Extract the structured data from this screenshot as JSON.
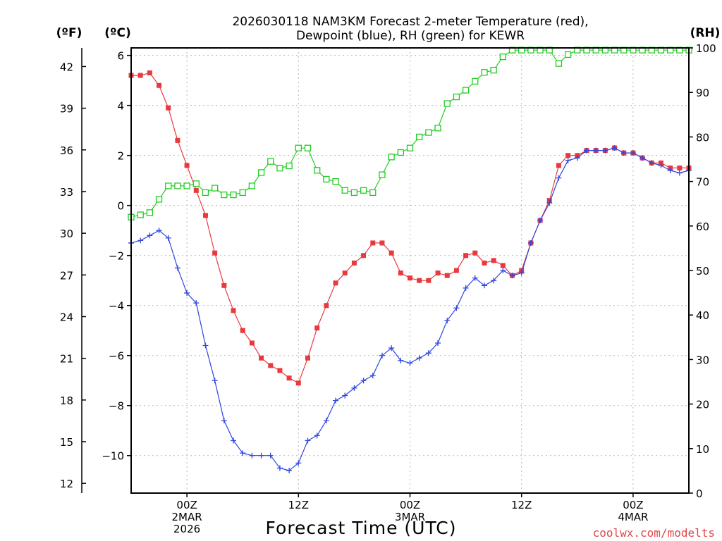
{
  "chart_data": {
    "type": "line",
    "title_line1": "2026030118 NAM3KM Forecast 2-meter Temperature (red),",
    "title_line2": "Dewpoint (blue), RH (green) for KEWR",
    "xlabel": "Forecast Time (UTC)",
    "credit": "coolwx.com/modelts",
    "colors": {
      "temperature": "#e8393f",
      "dewpoint": "#2f46e0",
      "rh": "#22cc22"
    },
    "left_unit_f": "(ºF)",
    "left_unit_c": "(ºC)",
    "right_unit": "(RH)",
    "x_range_hours": [
      0,
      60
    ],
    "ylim_c": [
      -11.5,
      6.3
    ],
    "ylim_rh": [
      0,
      100
    ],
    "y_ticks_c": [
      "6",
      "4",
      "2",
      "0",
      "−2",
      "−4",
      "−6",
      "−8",
      "−10"
    ],
    "y_ticks_f": [
      "42",
      "39",
      "36",
      "33",
      "30",
      "27",
      "24",
      "21",
      "18",
      "15",
      "12"
    ],
    "y_ticks_rh": [
      "100",
      "90",
      "80",
      "70",
      "60",
      "50",
      "40",
      "30",
      "20",
      "10",
      "0"
    ],
    "x_ticks": [
      {
        "hour": 6,
        "line1": "00Z",
        "line2": "2MAR",
        "line3": "2026"
      },
      {
        "hour": 18,
        "line1": "12Z",
        "line2": "",
        "line3": ""
      },
      {
        "hour": 30,
        "line1": "00Z",
        "line2": "3MAR",
        "line3": ""
      },
      {
        "hour": 42,
        "line1": "12Z",
        "line2": "",
        "line3": ""
      },
      {
        "hour": 54,
        "line1": "00Z",
        "line2": "4MAR",
        "line3": ""
      }
    ],
    "series": [
      {
        "name": "Temperature (°C)",
        "values": [
          5.2,
          5.2,
          5.3,
          4.8,
          3.9,
          2.6,
          1.6,
          0.6,
          -0.4,
          -1.9,
          -3.2,
          -4.2,
          -5.0,
          -5.5,
          -6.1,
          -6.4,
          -6.6,
          -6.9,
          -7.1,
          -6.1,
          -4.9,
          -4.0,
          -3.1,
          -2.7,
          -2.3,
          -2.0,
          -1.5,
          -1.5,
          -1.9,
          -2.7,
          -2.9,
          -3.0,
          -3.0,
          -2.7,
          -2.8,
          -2.6,
          -2.0,
          -1.9,
          -2.3,
          -2.2,
          -2.4,
          -2.8,
          -2.6,
          -1.5,
          -0.6,
          0.2,
          1.6,
          2.0,
          2.0,
          2.2,
          2.2,
          2.2,
          2.3,
          2.1,
          2.1,
          1.9,
          1.7,
          1.7,
          1.5,
          1.5,
          1.5
        ]
      },
      {
        "name": "Dewpoint (°C)",
        "values": [
          -1.5,
          -1.4,
          -1.2,
          -1.0,
          -1.3,
          -2.5,
          -3.5,
          -3.9,
          -5.6,
          -7.0,
          -8.6,
          -9.4,
          -9.9,
          -10.0,
          -10.0,
          -10.0,
          -10.5,
          -10.6,
          -10.3,
          -9.4,
          -9.2,
          -8.6,
          -7.8,
          -7.6,
          -7.3,
          -7.0,
          -6.8,
          -6.0,
          -5.7,
          -6.2,
          -6.3,
          -6.1,
          -5.9,
          -5.5,
          -4.6,
          -4.1,
          -3.3,
          -2.9,
          -3.2,
          -3.0,
          -2.6,
          -2.8,
          -2.7,
          -1.5,
          -0.6,
          0.1,
          1.1,
          1.8,
          1.9,
          2.2,
          2.2,
          2.2,
          2.3,
          2.1,
          2.1,
          1.9,
          1.7,
          1.6,
          1.4,
          1.3,
          1.4
        ]
      },
      {
        "name": "RH (%)",
        "values": [
          62,
          62.5,
          63,
          66,
          69,
          69,
          69,
          69.5,
          67.5,
          68.5,
          67,
          67,
          67.5,
          69,
          72,
          74.5,
          73,
          73.5,
          77.5,
          77.5,
          72.5,
          70.5,
          70,
          68,
          67.5,
          68,
          67.5,
          71.5,
          75.5,
          76.5,
          77.5,
          80,
          81,
          82,
          87.5,
          89,
          90.5,
          92.5,
          94.5,
          95,
          98,
          99.5,
          99.5,
          99.5,
          99.5,
          99.5,
          96.5,
          98.5,
          99.5,
          99.5,
          99.5,
          99.5,
          99.5,
          99.5,
          99.5,
          99.5,
          99.5,
          99.5,
          99.5,
          99.5,
          99.5
        ]
      }
    ]
  }
}
